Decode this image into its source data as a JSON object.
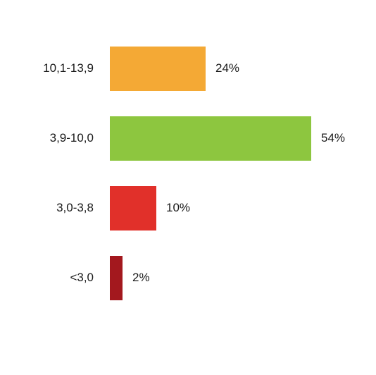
{
  "chart_data": {
    "type": "bar",
    "orientation": "horizontal",
    "categories": [
      "10,1-13,9",
      "3,9-10,0",
      "3,0-3,8",
      "<3,0"
    ],
    "values": [
      24,
      54,
      10,
      2
    ],
    "value_labels": [
      "24%",
      "54%",
      "10%",
      "2%"
    ],
    "colors": [
      "#f4a935",
      "#8dc63f",
      "#e1302a",
      "#a3181e"
    ],
    "title": "",
    "xlabel": "",
    "ylabel": "",
    "grid": false,
    "legend": "none"
  }
}
